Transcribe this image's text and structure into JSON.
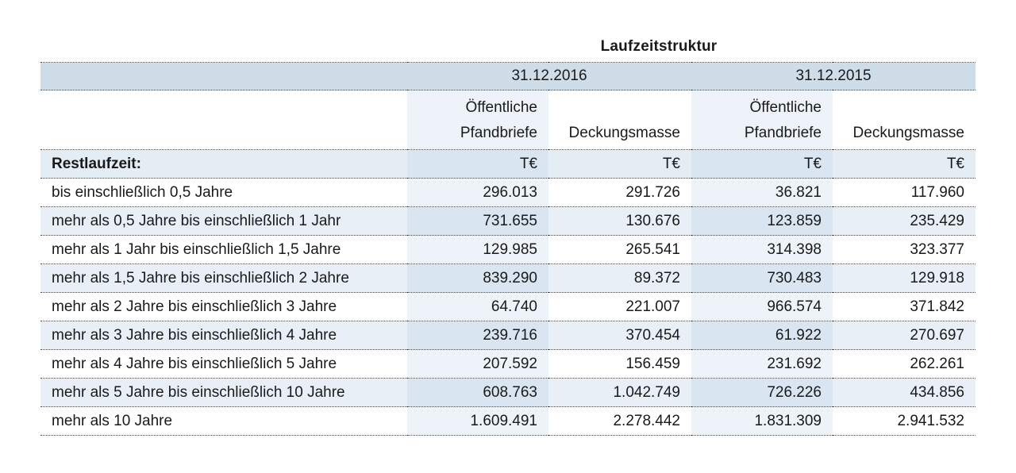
{
  "table": {
    "title": "Laufzeitstruktur",
    "years": [
      "31.12.2016",
      "31.12.2015"
    ],
    "col_headers": {
      "oeffentliche": [
        "Öffentliche",
        "Pfandbriefe"
      ],
      "deckung": "Deckungsmasse"
    },
    "row_header_label": "Restlaufzeit:",
    "unit": "T€",
    "rows": [
      {
        "label": "bis einschließlich 0,5 Jahre",
        "values": [
          "296.013",
          "291.726",
          "36.821",
          "117.960"
        ]
      },
      {
        "label": "mehr als 0,5 Jahre bis einschließlich 1 Jahr",
        "values": [
          "731.655",
          "130.676",
          "123.859",
          "235.429"
        ]
      },
      {
        "label": "mehr als 1 Jahr bis einschließlich 1,5 Jahre",
        "values": [
          "129.985",
          "265.541",
          "314.398",
          "323.377"
        ]
      },
      {
        "label": "mehr als 1,5 Jahre bis einschließlich 2 Jahre",
        "values": [
          "839.290",
          "89.372",
          "730.483",
          "129.918"
        ]
      },
      {
        "label": "mehr als 2 Jahre bis einschließlich 3 Jahre",
        "values": [
          "64.740",
          "221.007",
          "966.574",
          "371.842"
        ]
      },
      {
        "label": "mehr als 3 Jahre bis einschließlich 4 Jahre",
        "values": [
          "239.716",
          "370.454",
          "61.922",
          "270.697"
        ]
      },
      {
        "label": "mehr als 4 Jahre bis einschließlich 5 Jahre",
        "values": [
          "207.592",
          "156.459",
          "231.692",
          "262.261"
        ]
      },
      {
        "label": "mehr als 5 Jahre bis einschließlich 10 Jahre",
        "values": [
          "608.763",
          "1.042.749",
          "726.226",
          "434.856"
        ]
      },
      {
        "label": "mehr als 10 Jahre",
        "values": [
          "1.609.491",
          "2.278.442",
          "1.831.309",
          "2.941.532"
        ]
      }
    ],
    "colors": {
      "header_band": "#cfdde9",
      "column_shade": "#edf3f9",
      "row_band": "#e8eff6",
      "rule": "#4a4a4a"
    }
  }
}
